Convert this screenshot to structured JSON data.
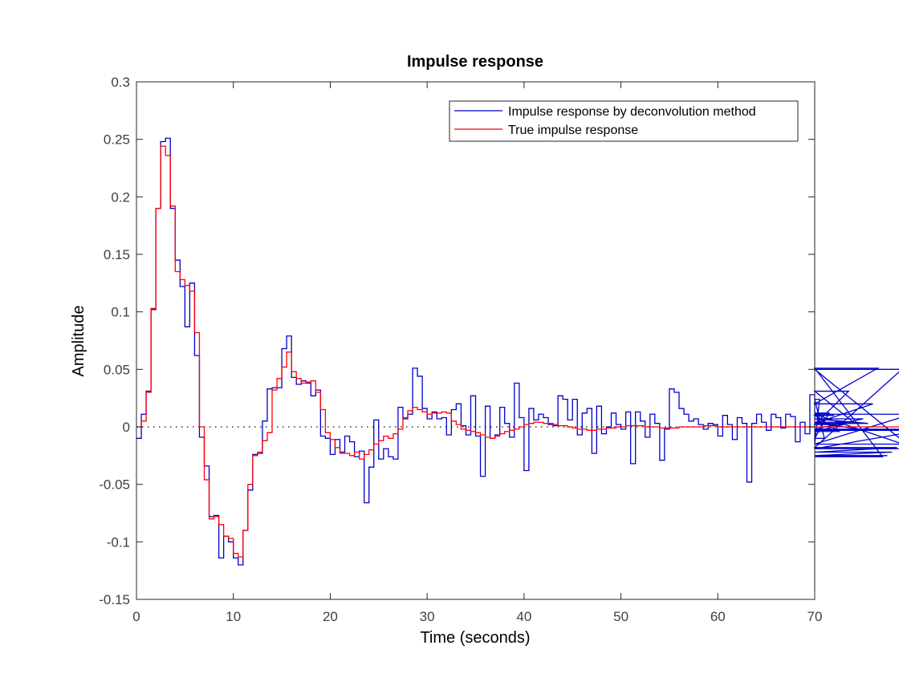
{
  "chart_data": {
    "type": "line",
    "title": "Impulse response",
    "xlabel": "Time (seconds)",
    "ylabel": "Amplitude",
    "xlim": [
      0,
      70
    ],
    "ylim": [
      -0.15,
      0.3
    ],
    "xticks": [
      "0",
      "10",
      "20",
      "30",
      "40",
      "50",
      "60",
      "70"
    ],
    "xtick_values": [
      0,
      10,
      20,
      30,
      40,
      50,
      60,
      70
    ],
    "yticks": [
      "-0.15",
      "-0.1",
      "-0.05",
      "0",
      "0.05",
      "0.1",
      "0.15",
      "0.2",
      "0.25",
      "0.3"
    ],
    "ytick_values": [
      -0.15,
      -0.1,
      -0.05,
      0,
      0.05,
      0.1,
      0.15,
      0.2,
      0.25,
      0.3
    ],
    "grid": false,
    "legend_position": "top-right",
    "zero_line": true,
    "step": 0.5,
    "series": [
      {
        "name": "Impulse response by deconvolution method",
        "color": "#0000cc",
        "style": "stairs",
        "values": [
          -0.01,
          0.011,
          0.031,
          0.102,
          0.19,
          0.248,
          0.251,
          0.19,
          0.145,
          0.122,
          0.087,
          0.125,
          0.062,
          -0.009,
          -0.034,
          -0.078,
          -0.077,
          -0.114,
          -0.095,
          -0.1,
          -0.114,
          -0.12,
          -0.09,
          -0.055,
          -0.024,
          -0.023,
          0.005,
          0.033,
          0.034,
          0.034,
          0.068,
          0.079,
          0.043,
          0.037,
          0.04,
          0.038,
          0.027,
          0.032,
          -0.008,
          -0.01,
          -0.024,
          -0.011,
          -0.022,
          -0.008,
          -0.013,
          -0.026,
          -0.021,
          -0.066,
          -0.035,
          0.006,
          -0.028,
          -0.019,
          -0.026,
          -0.028,
          0.017,
          0.007,
          0.011,
          0.051,
          0.044,
          0.016,
          0.007,
          0.013,
          0.007,
          0.008,
          -0.007,
          0.015,
          0.02,
          0.001,
          -0.007,
          0.027,
          -0.008,
          -0.043,
          0.018,
          -0.01,
          -0.007,
          0.017,
          0.003,
          -0.009,
          0.038,
          0.008,
          -0.038,
          0.016,
          0.006,
          0.011,
          0.008,
          0.002,
          0.001,
          0.027,
          0.024,
          0.006,
          0.024,
          -0.007,
          0.012,
          0.016,
          -0.023,
          0.018,
          -0.006,
          0.0,
          0.012,
          0.002,
          -0.002,
          0.013,
          -0.032,
          0.013,
          0.005,
          -0.009,
          0.011,
          0.003,
          -0.029,
          -0.002,
          0.033,
          0.03,
          0.016,
          0.011,
          0.005,
          0.007,
          0.002,
          -0.002,
          0.003,
          0.002,
          -0.008,
          0.01,
          0.002,
          -0.011,
          0.008,
          0.003,
          -0.048,
          0.003,
          0.011,
          0.004,
          -0.003,
          0.011,
          0.008,
          -0.001,
          0.011,
          0.009,
          -0.013,
          0.004,
          -0.006,
          0.028,
          -0.015,
          0.024,
          -0.01,
          0.012,
          0.01,
          -0.004,
          0.002,
          0.031,
          0.004,
          -0.002,
          0.007,
          0.003,
          0.02,
          0.051,
          -0.026,
          -0.025,
          -0.022,
          -0.018,
          0.05,
          -0.015,
          0.011,
          -0.019,
          -0.003,
          -0.002
        ]
      },
      {
        "name": "True impulse response",
        "color": "#ff0000",
        "style": "stairs",
        "values": [
          0.0,
          0.005,
          0.03,
          0.103,
          0.19,
          0.244,
          0.236,
          0.192,
          0.135,
          0.128,
          0.123,
          0.118,
          0.082,
          0.0,
          -0.046,
          -0.08,
          -0.078,
          -0.085,
          -0.095,
          -0.097,
          -0.11,
          -0.113,
          -0.09,
          -0.05,
          -0.025,
          -0.022,
          -0.012,
          -0.005,
          0.032,
          0.042,
          0.052,
          0.065,
          0.048,
          0.042,
          0.038,
          0.039,
          0.04,
          0.03,
          0.015,
          -0.005,
          -0.011,
          -0.018,
          -0.023,
          -0.023,
          -0.025,
          -0.022,
          -0.028,
          -0.024,
          -0.02,
          -0.015,
          -0.012,
          -0.008,
          -0.01,
          -0.006,
          -0.002,
          0.008,
          0.014,
          0.017,
          0.015,
          0.013,
          0.011,
          0.012,
          0.012,
          0.013,
          0.012,
          0.005,
          0.002,
          -0.002,
          -0.003,
          -0.004,
          -0.005,
          -0.007,
          -0.009,
          -0.01,
          -0.008,
          -0.006,
          -0.004,
          -0.003,
          -0.002,
          0.0,
          0.002,
          0.003,
          0.004,
          0.004,
          0.003,
          0.003,
          0.002,
          0.001,
          0.001,
          0.0,
          -0.001,
          -0.002,
          -0.002,
          -0.003,
          -0.003,
          -0.002,
          -0.002,
          -0.001,
          -0.001,
          0.0,
          0.0,
          0.001,
          0.001,
          0.001,
          0.001,
          0.0,
          0.0,
          0.0,
          -0.001,
          -0.001,
          -0.001,
          -0.001,
          0.0,
          0.0,
          0.0,
          0.0,
          0.0,
          0.001,
          0.001,
          0.001,
          0.0,
          0.0,
          0.0,
          0.0,
          0.0,
          0.0,
          0.0,
          0.0,
          0.0,
          0.0,
          0.0,
          0.0,
          0.0,
          0.0,
          0.0,
          0.0,
          0.0,
          0.0,
          0.0,
          0.0,
          0.0,
          0.0,
          0.0,
          0.0,
          0.0,
          0.0,
          0.0,
          0.0,
          0.0,
          0.0,
          0.0,
          0.0,
          0.0,
          0.0,
          0.0,
          0.0,
          0.0,
          0.0,
          0.0,
          0.0,
          0.0
        ]
      }
    ]
  }
}
